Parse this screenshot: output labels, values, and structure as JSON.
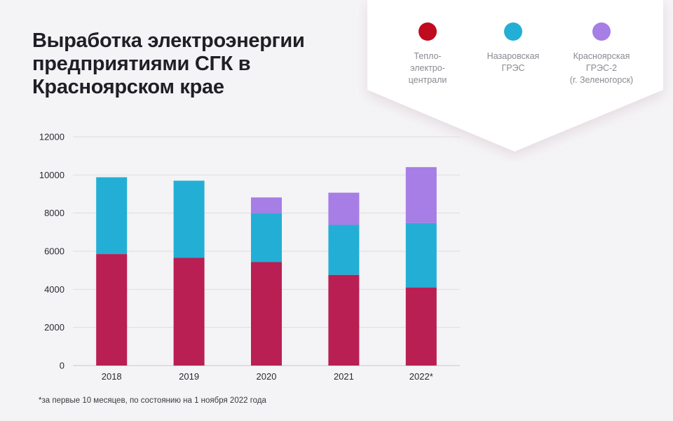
{
  "title": "Выработка электроэнергии предприятиями СГК в Красноярском крае",
  "legend": [
    {
      "label": "Тепло-\nэлектро-\nцентрали",
      "color": "#c00a1e"
    },
    {
      "label": "Назаровская\nГРЭС",
      "color": "#23afd5"
    },
    {
      "label": "Красноярская\nГРЭС-2\n(г. Зеленогорск)",
      "color": "#a77de6"
    }
  ],
  "footnote": "*за первые 10 месяцев, по состоянию на 1 ноября 2022 года",
  "chart_data": {
    "type": "bar",
    "stacked": true,
    "categories": [
      "2018",
      "2019",
      "2020",
      "2021",
      "2022*"
    ],
    "series": [
      {
        "name": "Тепло-электро-централи",
        "color": "#b91f52",
        "values": [
          5850,
          5650,
          5430,
          4760,
          4100
        ]
      },
      {
        "name": "Назаровская ГРЭС",
        "color": "#23afd5",
        "values": [
          4030,
          4050,
          2570,
          2620,
          3380
        ]
      },
      {
        "name": "Красноярская ГРЭС-2 (г. Зеленогорск)",
        "color": "#a77de6",
        "values": [
          0,
          0,
          820,
          1690,
          2930
        ]
      }
    ],
    "y_ticks": [
      "0",
      "2000",
      "4000",
      "6000",
      "8000",
      "10000",
      "12000"
    ],
    "ylim": [
      0,
      12000
    ],
    "xlabel": "",
    "ylabel": "",
    "grid": true
  }
}
